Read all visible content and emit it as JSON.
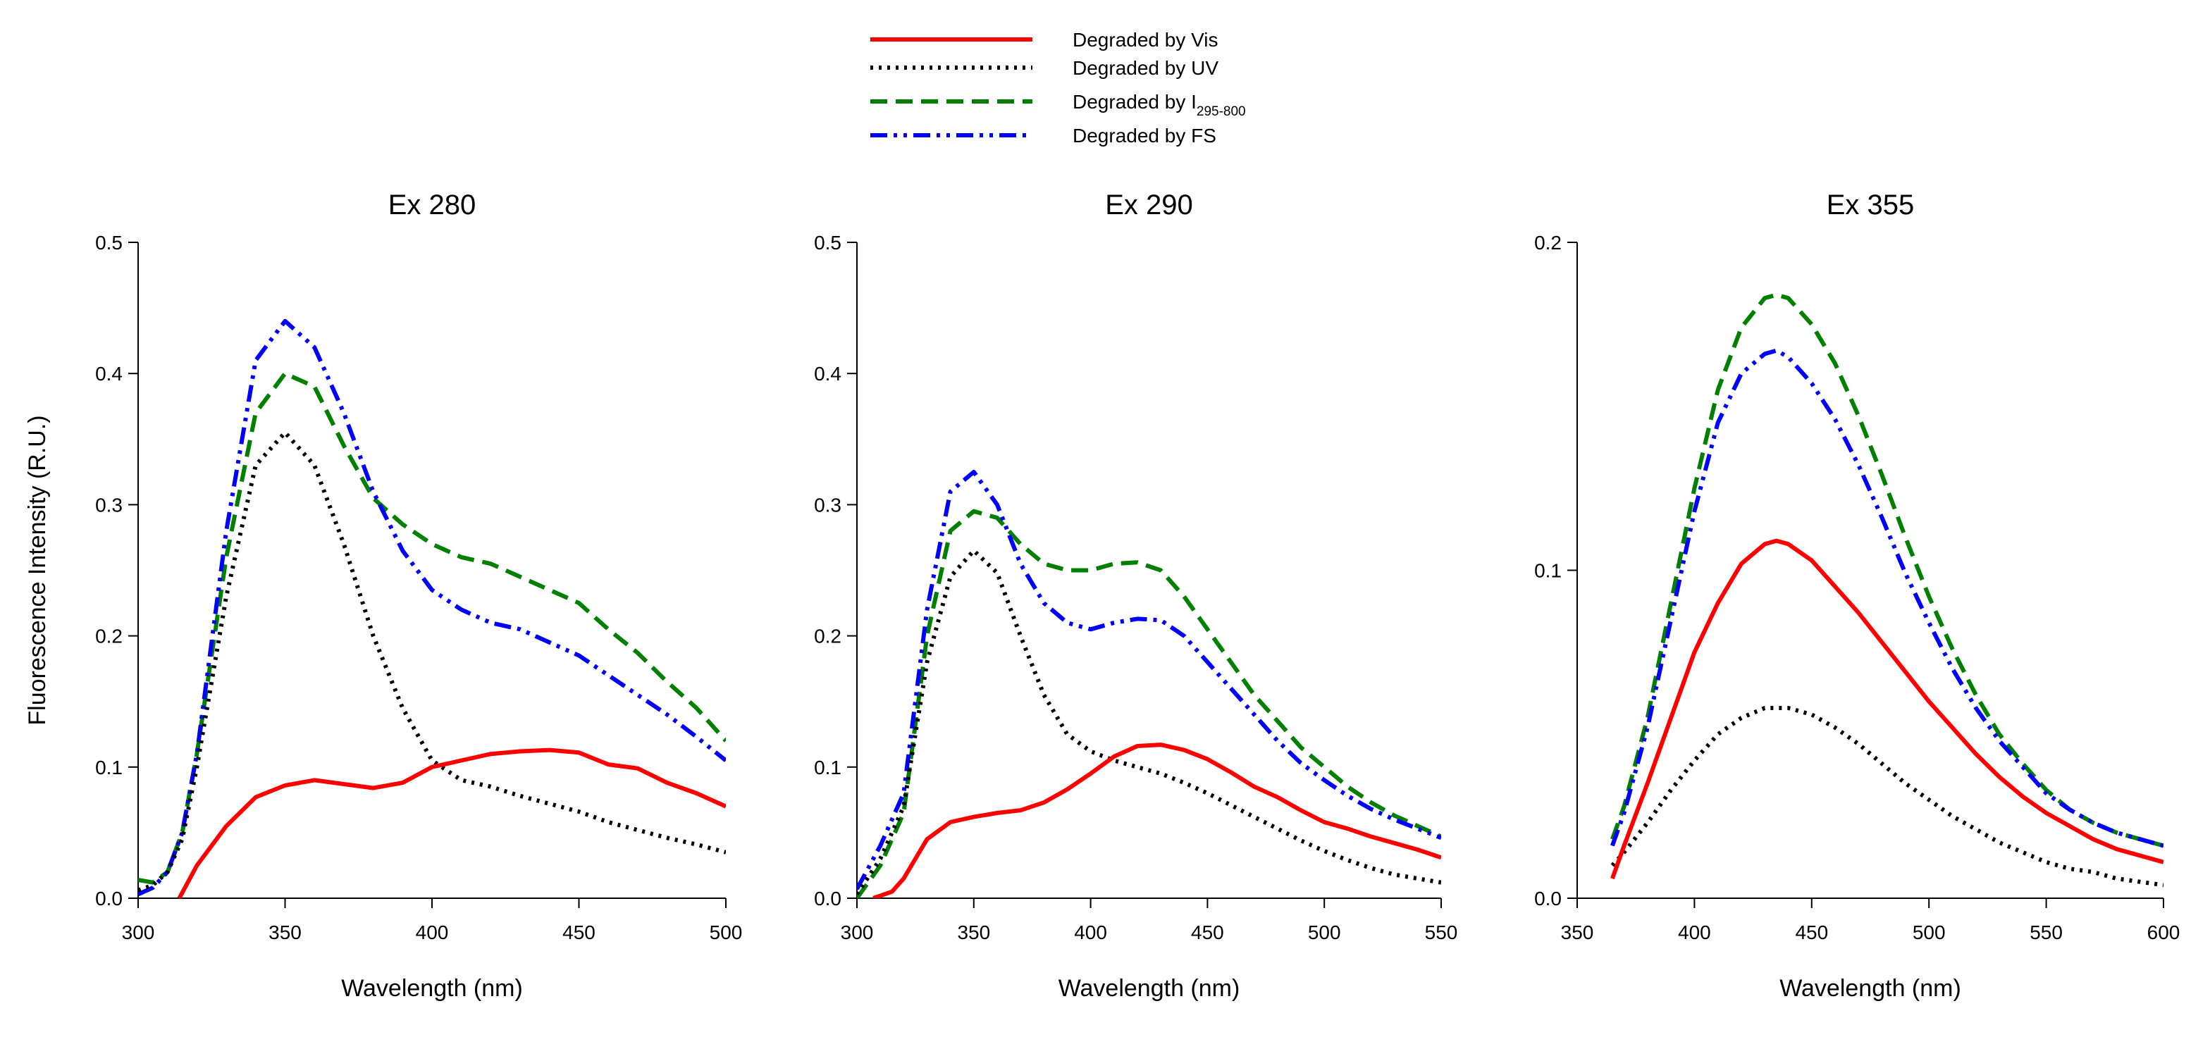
{
  "legend": {
    "entries": [
      {
        "series": "vis",
        "label_prefix": "Degraded by Vis",
        "label_sub": ""
      },
      {
        "series": "uv",
        "label_prefix": "Degraded by UV",
        "label_sub": ""
      },
      {
        "series": "i",
        "label_prefix": "Degraded by I",
        "label_sub": "295-800"
      },
      {
        "series": "fs",
        "label_prefix": "Degraded by FS",
        "label_sub": ""
      }
    ]
  },
  "series_style": {
    "vis": {
      "color": "#ff0000",
      "dash": "solid"
    },
    "uv": {
      "color": "#000000",
      "dash": "dotted"
    },
    "i": {
      "color": "#008000",
      "dash": "dashed"
    },
    "fs": {
      "color": "#0000ff",
      "dash": "dash-dot-dot"
    }
  },
  "chart_data": [
    {
      "type": "line",
      "title": "Ex 280",
      "xlabel": "Wavelength (nm)",
      "ylabel": "Fluorescence Intensity (R.U.)",
      "xlim": [
        300,
        500
      ],
      "ylim": [
        0,
        0.5
      ],
      "xticks": [
        300,
        350,
        400,
        450,
        500
      ],
      "xtick_labels": [
        "300",
        "350",
        "400",
        "450",
        "500"
      ],
      "yticks": [
        0,
        0.1,
        0.2,
        0.3,
        0.4,
        0.5
      ],
      "ytick_labels": [
        "0.0",
        "0.1",
        "0.2",
        "0.3",
        "0.4",
        "0.5"
      ],
      "series": [
        {
          "name": "vis",
          "x": [
            314,
            320,
            330,
            340,
            350,
            360,
            370,
            380,
            390,
            400,
            410,
            420,
            430,
            440,
            450,
            460,
            470,
            480,
            490,
            500
          ],
          "y": [
            0,
            0.025,
            0.055,
            0.077,
            0.086,
            0.09,
            0.087,
            0.084,
            0.088,
            0.1,
            0.105,
            0.11,
            0.112,
            0.113,
            0.111,
            0.102,
            0.099,
            0.088,
            0.08,
            0.07
          ]
        },
        {
          "name": "uv",
          "x": [
            300,
            305,
            310,
            315,
            320,
            330,
            340,
            350,
            360,
            370,
            380,
            390,
            400,
            410,
            420,
            430,
            440,
            450,
            460,
            470,
            480,
            490,
            500
          ],
          "y": [
            0.006,
            0.01,
            0.02,
            0.045,
            0.1,
            0.23,
            0.33,
            0.355,
            0.33,
            0.27,
            0.2,
            0.145,
            0.105,
            0.09,
            0.085,
            0.078,
            0.072,
            0.066,
            0.058,
            0.052,
            0.046,
            0.041,
            0.035
          ]
        },
        {
          "name": "i",
          "x": [
            300,
            305,
            310,
            315,
            320,
            330,
            340,
            350,
            360,
            370,
            380,
            390,
            400,
            410,
            420,
            430,
            440,
            450,
            460,
            470,
            480,
            490,
            500
          ],
          "y": [
            0.014,
            0.012,
            0.02,
            0.05,
            0.11,
            0.26,
            0.37,
            0.4,
            0.39,
            0.345,
            0.305,
            0.285,
            0.27,
            0.26,
            0.255,
            0.245,
            0.235,
            0.225,
            0.205,
            0.187,
            0.165,
            0.145,
            0.12
          ]
        },
        {
          "name": "fs",
          "x": [
            300,
            305,
            310,
            315,
            320,
            330,
            340,
            350,
            360,
            370,
            380,
            390,
            400,
            410,
            420,
            430,
            440,
            450,
            460,
            470,
            480,
            490,
            500
          ],
          "y": [
            0.003,
            0.008,
            0.02,
            0.05,
            0.11,
            0.28,
            0.41,
            0.44,
            0.42,
            0.37,
            0.31,
            0.265,
            0.235,
            0.22,
            0.21,
            0.205,
            0.195,
            0.185,
            0.17,
            0.155,
            0.14,
            0.123,
            0.105
          ]
        }
      ]
    },
    {
      "type": "line",
      "title": "Ex 290",
      "xlabel": "Wavelength (nm)",
      "ylabel": "",
      "xlim": [
        300,
        550
      ],
      "ylim": [
        0,
        0.5
      ],
      "xticks": [
        300,
        350,
        400,
        450,
        500,
        550
      ],
      "xtick_labels": [
        "300",
        "350",
        "400",
        "450",
        "500",
        "550"
      ],
      "yticks": [
        0,
        0.1,
        0.2,
        0.3,
        0.4,
        0.5
      ],
      "ytick_labels": [
        "0.0",
        "0.1",
        "0.2",
        "0.3",
        "0.4",
        "0.5"
      ],
      "series": [
        {
          "name": "vis",
          "x": [
            307,
            315,
            320,
            325,
            330,
            340,
            350,
            360,
            370,
            380,
            390,
            400,
            410,
            420,
            430,
            440,
            450,
            460,
            470,
            480,
            490,
            500,
            510,
            520,
            530,
            540,
            550
          ],
          "y": [
            0,
            0.005,
            0.015,
            0.03,
            0.045,
            0.058,
            0.062,
            0.065,
            0.067,
            0.073,
            0.083,
            0.095,
            0.108,
            0.116,
            0.117,
            0.113,
            0.106,
            0.096,
            0.085,
            0.077,
            0.067,
            0.058,
            0.053,
            0.047,
            0.042,
            0.037,
            0.031
          ]
        },
        {
          "name": "uv",
          "x": [
            300,
            310,
            320,
            330,
            340,
            350,
            360,
            370,
            380,
            390,
            400,
            410,
            420,
            430,
            440,
            450,
            460,
            470,
            480,
            490,
            500,
            510,
            520,
            530,
            540,
            550
          ],
          "y": [
            0.003,
            0.03,
            0.07,
            0.18,
            0.245,
            0.265,
            0.248,
            0.2,
            0.155,
            0.125,
            0.112,
            0.105,
            0.1,
            0.095,
            0.088,
            0.08,
            0.071,
            0.062,
            0.053,
            0.044,
            0.036,
            0.029,
            0.023,
            0.018,
            0.015,
            0.012
          ]
        },
        {
          "name": "i",
          "x": [
            300,
            310,
            320,
            330,
            340,
            350,
            360,
            370,
            380,
            390,
            400,
            410,
            420,
            430,
            440,
            450,
            460,
            470,
            480,
            490,
            500,
            510,
            520,
            530,
            540,
            550
          ],
          "y": [
            0,
            0.025,
            0.065,
            0.2,
            0.28,
            0.295,
            0.29,
            0.27,
            0.255,
            0.25,
            0.25,
            0.255,
            0.256,
            0.25,
            0.23,
            0.205,
            0.18,
            0.155,
            0.135,
            0.115,
            0.1,
            0.085,
            0.073,
            0.063,
            0.055,
            0.047
          ]
        },
        {
          "name": "fs",
          "x": [
            300,
            310,
            320,
            330,
            340,
            350,
            360,
            370,
            380,
            390,
            400,
            410,
            420,
            430,
            440,
            450,
            460,
            470,
            480,
            490,
            500,
            510,
            520,
            530,
            540,
            550
          ],
          "y": [
            0.007,
            0.04,
            0.08,
            0.22,
            0.31,
            0.325,
            0.3,
            0.255,
            0.225,
            0.21,
            0.205,
            0.21,
            0.213,
            0.212,
            0.2,
            0.18,
            0.16,
            0.14,
            0.12,
            0.103,
            0.09,
            0.078,
            0.068,
            0.06,
            0.053,
            0.046
          ]
        }
      ]
    },
    {
      "type": "line",
      "title": "Ex 355",
      "xlabel": "Wavelength (nm)",
      "ylabel": "",
      "xlim": [
        350,
        600
      ],
      "ylim": [
        0,
        0.2
      ],
      "xticks": [
        350,
        400,
        450,
        500,
        550,
        600
      ],
      "xtick_labels": [
        "350",
        "400",
        "450",
        "500",
        "550",
        "600"
      ],
      "yticks": [
        0,
        0.1,
        0.2
      ],
      "ytick_labels": [
        "0.0",
        "0.1",
        "0.2"
      ],
      "series": [
        {
          "name": "vis",
          "x": [
            365,
            370,
            380,
            390,
            400,
            410,
            420,
            430,
            435,
            440,
            450,
            460,
            470,
            480,
            490,
            500,
            510,
            520,
            530,
            540,
            550,
            560,
            570,
            580,
            590,
            600
          ],
          "y": [
            0.006,
            0.016,
            0.035,
            0.055,
            0.075,
            0.09,
            0.102,
            0.108,
            0.109,
            0.108,
            0.103,
            0.095,
            0.087,
            0.078,
            0.069,
            0.06,
            0.052,
            0.044,
            0.037,
            0.031,
            0.026,
            0.022,
            0.018,
            0.015,
            0.013,
            0.011
          ]
        },
        {
          "name": "uv",
          "x": [
            365,
            370,
            380,
            390,
            400,
            410,
            420,
            430,
            435,
            440,
            450,
            460,
            470,
            480,
            490,
            500,
            510,
            520,
            530,
            540,
            550,
            560,
            570,
            580,
            590,
            600
          ],
          "y": [
            0.01,
            0.014,
            0.023,
            0.033,
            0.042,
            0.05,
            0.055,
            0.058,
            0.058,
            0.058,
            0.056,
            0.052,
            0.047,
            0.041,
            0.035,
            0.03,
            0.025,
            0.021,
            0.017,
            0.014,
            0.011,
            0.009,
            0.008,
            0.006,
            0.005,
            0.004
          ]
        },
        {
          "name": "i",
          "x": [
            365,
            370,
            380,
            390,
            400,
            410,
            420,
            430,
            435,
            440,
            450,
            460,
            470,
            480,
            490,
            500,
            510,
            520,
            530,
            540,
            550,
            560,
            570,
            580,
            590,
            600
          ],
          "y": [
            0.018,
            0.028,
            0.055,
            0.09,
            0.125,
            0.155,
            0.174,
            0.183,
            0.184,
            0.183,
            0.175,
            0.163,
            0.147,
            0.129,
            0.11,
            0.092,
            0.076,
            0.062,
            0.05,
            0.041,
            0.033,
            0.027,
            0.023,
            0.02,
            0.018,
            0.016
          ]
        },
        {
          "name": "fs",
          "x": [
            365,
            370,
            380,
            390,
            400,
            410,
            420,
            430,
            435,
            440,
            450,
            460,
            470,
            480,
            490,
            500,
            510,
            520,
            530,
            540,
            550,
            560,
            570,
            580,
            590,
            600
          ],
          "y": [
            0.016,
            0.026,
            0.052,
            0.085,
            0.118,
            0.145,
            0.16,
            0.166,
            0.167,
            0.165,
            0.157,
            0.146,
            0.132,
            0.116,
            0.099,
            0.084,
            0.07,
            0.058,
            0.048,
            0.04,
            0.032,
            0.027,
            0.023,
            0.02,
            0.018,
            0.016
          ]
        }
      ]
    }
  ]
}
